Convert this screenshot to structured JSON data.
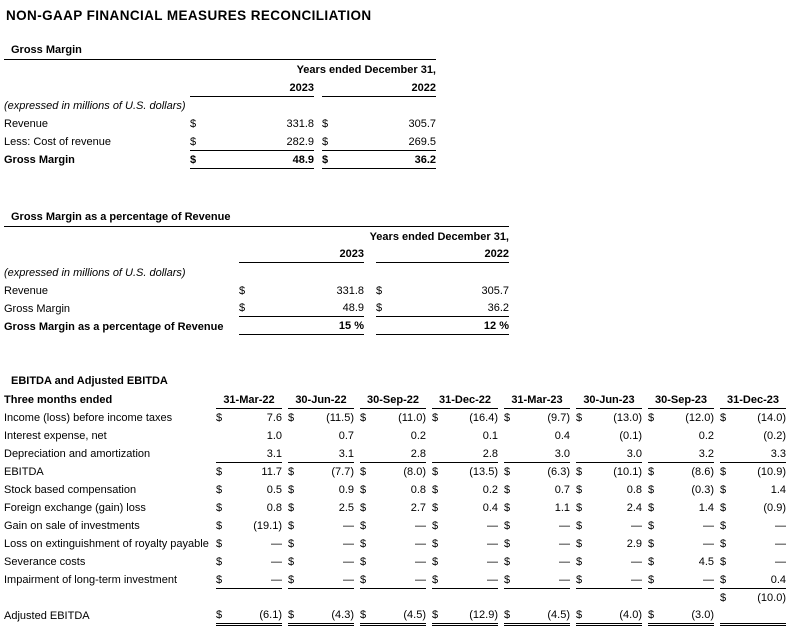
{
  "page_title": "NON-GAAP FINANCIAL MEASURES RECONCILIATION",
  "colors": {
    "text": "#000000",
    "background": "#ffffff",
    "rule": "#000000"
  },
  "gross_margin_table": {
    "title": "Gross Margin",
    "period_header": "Years ended December 31,",
    "year_columns": [
      "2023",
      "2022"
    ],
    "units_note": "(expressed in millions of U.S. dollars)",
    "rows": [
      {
        "label": "Revenue",
        "cells": [
          [
            "$",
            "331.8"
          ],
          [
            "$",
            "305.7"
          ]
        ]
      },
      {
        "label": "Less: Cost of revenue",
        "rule_below": true,
        "cells": [
          [
            "$",
            "282.9"
          ],
          [
            "$",
            "269.5"
          ]
        ]
      },
      {
        "label": "Gross Margin",
        "total": true,
        "rule_below": true,
        "cells": [
          [
            "$",
            "48.9"
          ],
          [
            "$",
            "36.2"
          ]
        ]
      }
    ]
  },
  "gross_margin_pct_table": {
    "title": "Gross Margin as a percentage of Revenue",
    "period_header": "Years ended December 31,",
    "year_columns": [
      "2023",
      "2022"
    ],
    "units_note": "(expressed in millions of U.S. dollars)",
    "rows": [
      {
        "label": "Revenue",
        "cells": [
          [
            "$",
            "331.8"
          ],
          [
            "$",
            "305.7"
          ]
        ]
      },
      {
        "label": "Gross Margin",
        "rule_below": true,
        "cells": [
          [
            "$",
            "48.9"
          ],
          [
            "$",
            "36.2"
          ]
        ]
      },
      {
        "label": "Gross Margin as a percentage of Revenue",
        "total": true,
        "rule_below": true,
        "cells": [
          [
            "",
            "15 %"
          ],
          [
            "",
            "12 %"
          ]
        ]
      }
    ]
  },
  "ebitda_table": {
    "title": "EBITDA and Adjusted EBITDA",
    "header_label": "Three months ended",
    "quarter_columns": [
      "31-Mar-22",
      "30-Jun-22",
      "30-Sep-22",
      "31-Dec-22",
      "31-Mar-23",
      "30-Jun-23",
      "30-Sep-23",
      "31-Dec-23"
    ],
    "rows": [
      {
        "label": "Income (loss) before income taxes",
        "cells": [
          [
            "$",
            "7.6"
          ],
          [
            "$",
            "(11.5)"
          ],
          [
            "$",
            "(11.0)"
          ],
          [
            "$",
            "(16.4)"
          ],
          [
            "$",
            "(9.7)"
          ],
          [
            "$",
            "(13.0)"
          ],
          [
            "$",
            "(12.0)"
          ],
          [
            "$",
            "(14.0)"
          ]
        ]
      },
      {
        "label": "Interest expense, net",
        "cells": [
          [
            "",
            "1.0"
          ],
          [
            "",
            "0.7"
          ],
          [
            "",
            "0.2"
          ],
          [
            "",
            "0.1"
          ],
          [
            "",
            "0.4"
          ],
          [
            "",
            "(0.1)"
          ],
          [
            "",
            "0.2"
          ],
          [
            "",
            "(0.2)"
          ]
        ]
      },
      {
        "label": "Depreciation and amortization",
        "rule_below": true,
        "cells": [
          [
            "",
            "3.1"
          ],
          [
            "",
            "3.1"
          ],
          [
            "",
            "2.8"
          ],
          [
            "",
            "2.8"
          ],
          [
            "",
            "3.0"
          ],
          [
            "",
            "3.0"
          ],
          [
            "",
            "3.2"
          ],
          [
            "",
            "3.3"
          ]
        ]
      },
      {
        "label": "EBITDA",
        "cells": [
          [
            "$",
            "11.7"
          ],
          [
            "$",
            "(7.7)"
          ],
          [
            "$",
            "(8.0)"
          ],
          [
            "$",
            "(13.5)"
          ],
          [
            "$",
            "(6.3)"
          ],
          [
            "$",
            "(10.1)"
          ],
          [
            "$",
            "(8.6)"
          ],
          [
            "$",
            "(10.9)"
          ]
        ]
      },
      {
        "label": "Stock based compensation",
        "cells": [
          [
            "$",
            "0.5"
          ],
          [
            "$",
            "0.9"
          ],
          [
            "$",
            "0.8"
          ],
          [
            "$",
            "0.2"
          ],
          [
            "$",
            "0.7"
          ],
          [
            "$",
            "0.8"
          ],
          [
            "$",
            "(0.3)"
          ],
          [
            "$",
            "1.4"
          ]
        ]
      },
      {
        "label": "Foreign exchange (gain) loss",
        "cells": [
          [
            "$",
            "0.8"
          ],
          [
            "$",
            "2.5"
          ],
          [
            "$",
            "2.7"
          ],
          [
            "$",
            "0.4"
          ],
          [
            "$",
            "1.1"
          ],
          [
            "$",
            "2.4"
          ],
          [
            "$",
            "1.4"
          ],
          [
            "$",
            "(0.9)"
          ]
        ]
      },
      {
        "label": "Gain on sale of investments",
        "cells": [
          [
            "$",
            "(19.1)"
          ],
          [
            "$",
            "—"
          ],
          [
            "$",
            "—"
          ],
          [
            "$",
            "—"
          ],
          [
            "$",
            "—"
          ],
          [
            "$",
            "—"
          ],
          [
            "$",
            "—"
          ],
          [
            "$",
            "—"
          ]
        ]
      },
      {
        "label": "Loss on extinguishment of royalty payable",
        "cells": [
          [
            "$",
            "—"
          ],
          [
            "$",
            "—"
          ],
          [
            "$",
            "—"
          ],
          [
            "$",
            "—"
          ],
          [
            "$",
            "—"
          ],
          [
            "$",
            "2.9"
          ],
          [
            "$",
            "—"
          ],
          [
            "$",
            "—"
          ]
        ]
      },
      {
        "label": "Severance costs",
        "cells": [
          [
            "$",
            "—"
          ],
          [
            "$",
            "—"
          ],
          [
            "$",
            "—"
          ],
          [
            "$",
            "—"
          ],
          [
            "$",
            "—"
          ],
          [
            "$",
            "—"
          ],
          [
            "$",
            "4.5"
          ],
          [
            "$",
            "—"
          ]
        ]
      },
      {
        "label": "Impairment of long-term investment",
        "rule_below": true,
        "cells": [
          [
            "$",
            "—"
          ],
          [
            "$",
            "—"
          ],
          [
            "$",
            "—"
          ],
          [
            "$",
            "—"
          ],
          [
            "$",
            "—"
          ],
          [
            "$",
            "—"
          ],
          [
            "$",
            "—"
          ],
          [
            "$",
            "0.4"
          ]
        ]
      },
      {
        "label": "",
        "spacer": true,
        "cells": [
          [
            "",
            ""
          ],
          [
            "",
            ""
          ],
          [
            "",
            ""
          ],
          [
            "",
            ""
          ],
          [
            "",
            ""
          ],
          [
            "",
            ""
          ],
          [
            "",
            ""
          ],
          [
            "$",
            "(10.0)"
          ]
        ]
      },
      {
        "label": "Adjusted EBITDA",
        "double_rule_below": true,
        "cells": [
          [
            "$",
            "(6.1)"
          ],
          [
            "$",
            "(4.3)"
          ],
          [
            "$",
            "(4.5)"
          ],
          [
            "$",
            "(12.9)"
          ],
          [
            "$",
            "(4.5)"
          ],
          [
            "$",
            "(4.0)"
          ],
          [
            "$",
            "(3.0)"
          ],
          [
            "",
            ""
          ]
        ]
      }
    ]
  }
}
